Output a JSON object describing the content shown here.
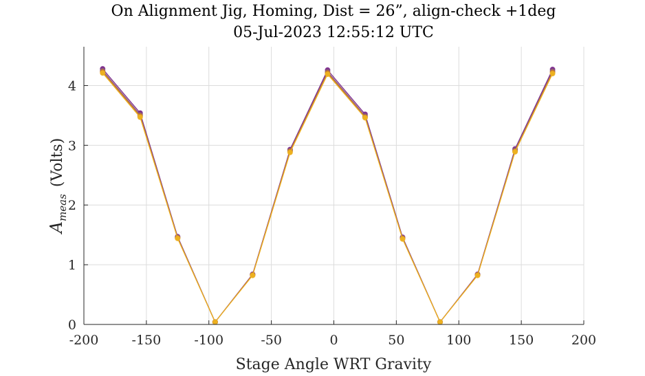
{
  "chart_data": {
    "type": "line",
    "title": "On Alignment Jig, Homing, Dist = 26”, align-check +1deg",
    "subtitle": "05-Jul-2023 12:55:12 UTC",
    "xlabel": "Stage Angle WRT Gravity",
    "ylabel_main": "A",
    "ylabel_sub": "meas",
    "ylabel_unit": "(Volts)",
    "xlim": [
      -200,
      200
    ],
    "ylim": [
      0,
      4.65
    ],
    "xticks": [
      -200,
      -150,
      -100,
      -50,
      0,
      50,
      100,
      150,
      200
    ],
    "yticks": [
      0,
      1,
      2,
      3,
      4
    ],
    "grid": true,
    "x": [
      -185,
      -155,
      -125,
      -95,
      -65,
      -35,
      -5,
      25,
      55,
      85,
      115,
      145,
      175
    ],
    "series": [
      {
        "color": "#7e2f8e",
        "values": [
          4.28,
          3.54,
          1.47,
          0.04,
          0.84,
          2.93,
          4.26,
          3.52,
          1.46,
          0.04,
          0.84,
          2.94,
          4.27
        ]
      },
      {
        "color": "#8c5a7a",
        "values": [
          4.25,
          3.51,
          1.46,
          0.04,
          0.83,
          2.91,
          4.23,
          3.49,
          1.45,
          0.04,
          0.83,
          2.92,
          4.24
        ]
      },
      {
        "color": "#c4792e",
        "values": [
          4.23,
          3.49,
          1.45,
          0.04,
          0.83,
          2.9,
          4.21,
          3.47,
          1.44,
          0.04,
          0.83,
          2.9,
          4.22
        ]
      },
      {
        "color": "#edb120",
        "values": [
          4.21,
          3.47,
          1.44,
          0.04,
          0.82,
          2.88,
          4.19,
          3.46,
          1.43,
          0.04,
          0.82,
          2.89,
          4.2
        ]
      }
    ]
  }
}
